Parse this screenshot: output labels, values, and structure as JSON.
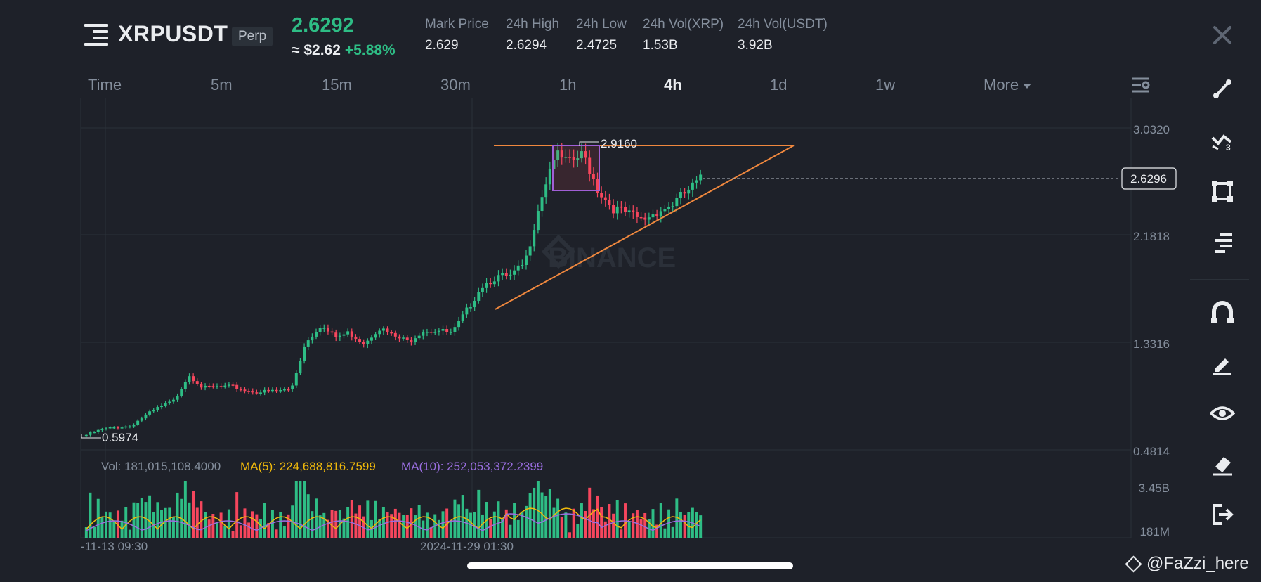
{
  "header": {
    "symbol": "XRPUSDT",
    "contract_type": "Perp",
    "last_price": "2.6292",
    "approx_price": "≈ $2.62",
    "change_pct": "+5.88%",
    "stats": [
      {
        "label": "Mark Price",
        "value": "2.629"
      },
      {
        "label": "24h High",
        "value": "2.6294"
      },
      {
        "label": "24h Low",
        "value": "2.4725"
      },
      {
        "label": "24h Vol(XRP)",
        "value": "1.53B"
      },
      {
        "label": "24h Vol(USDT)",
        "value": "3.92B"
      }
    ]
  },
  "tabs": [
    {
      "label": "Time"
    },
    {
      "label": "5m"
    },
    {
      "label": "15m"
    },
    {
      "label": "30m"
    },
    {
      "label": "1h"
    },
    {
      "label": "4h",
      "active": true
    },
    {
      "label": "1d"
    },
    {
      "label": "1w"
    },
    {
      "label": "More"
    }
  ],
  "chart": {
    "watermark": "BINANCE",
    "price_axis": [
      "3.0320",
      "2.1818",
      "1.3316",
      "0.4814"
    ],
    "current_price_tag": "2.6296",
    "high_marker": "2.9160",
    "low_marker": "0.5974",
    "volume": {
      "vol_label": "Vol: 181,015,108.4000",
      "ma5_label": "MA(5): 224,688,816.7599",
      "ma10_label": "MA(10): 252,053,372.2399",
      "axis": [
        "3.45B",
        "181M"
      ]
    },
    "time_axis": [
      "-11-13 09:30",
      "2024-11-29 01:30"
    ],
    "colors": {
      "up": "#2ebd85",
      "down": "#f6465d",
      "trendline": "#f0883e",
      "ma5": "#f0b90b",
      "ma10": "#9a6ee0",
      "box": "#a05fd6"
    }
  },
  "chart_data": {
    "type": "candlestick",
    "title": "",
    "yaxis_ticks": [
      3.032,
      2.1818,
      1.3316,
      0.4814
    ],
    "ylim": [
      0.4814,
      3.032
    ],
    "x_ticks": [
      "-11-13 09:30",
      "2024-11-29 01:30"
    ],
    "close_path": [
      0.6,
      0.64,
      0.66,
      0.67,
      0.75,
      0.82,
      0.87,
      1.08,
      0.97,
      0.98,
      0.98,
      0.95,
      0.94,
      0.95,
      0.96,
      1.34,
      1.47,
      1.37,
      1.41,
      1.33,
      1.45,
      1.38,
      1.34,
      1.43,
      1.43,
      1.4,
      1.58,
      1.78,
      1.85,
      1.85,
      1.96,
      2.45,
      2.82,
      2.75,
      2.82,
      2.54,
      2.4,
      2.35,
      2.3,
      2.37,
      2.42,
      2.52,
      2.62
    ],
    "markers": {
      "high": 2.916,
      "low": 0.5974,
      "current": 2.6296
    },
    "volume": {
      "ylim_labels": [
        "3.45B",
        "181M"
      ],
      "last": 181015108.4,
      "ma5": 224688816.7599,
      "ma10": 252053372.2399
    },
    "grid": true
  },
  "toolbar": {
    "icons": [
      "trendline-tool-icon",
      "multi-line-tool-icon",
      "rectangle-tool-icon",
      "fib-tool-icon",
      "magnet-icon",
      "pencil-icon",
      "eye-icon",
      "eraser-icon",
      "exit-icon"
    ]
  },
  "credit": "@FaZzi_here"
}
